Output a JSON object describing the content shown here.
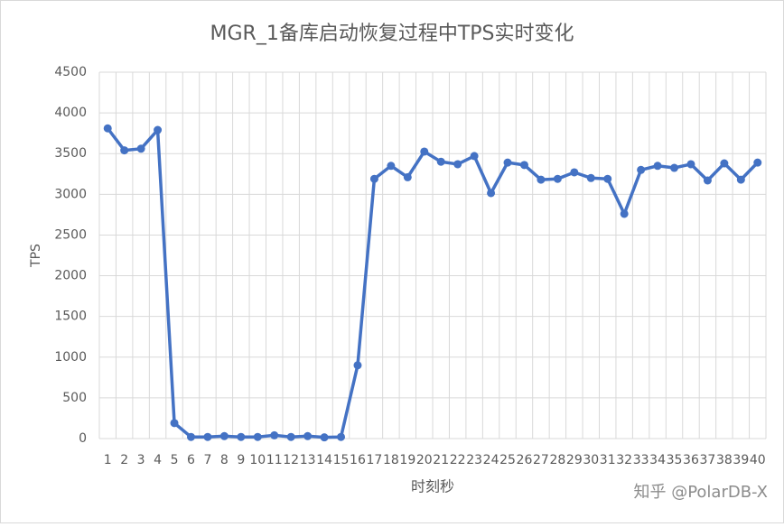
{
  "chart_data": {
    "type": "line",
    "title": "MGR_1备库启动恢复过程中TPS实时变化",
    "x_label": "时刻秒",
    "y_label": "TPS",
    "watermark": "知乎 @PolarDB-X",
    "categories": [
      "1",
      "2",
      "3",
      "4",
      "5",
      "6",
      "7",
      "8",
      "9",
      "10",
      "11",
      "12",
      "13",
      "14",
      "15",
      "16",
      "17",
      "18",
      "19",
      "20",
      "21",
      "22",
      "23",
      "24",
      "25",
      "26",
      "27",
      "28",
      "29",
      "30",
      "31",
      "32",
      "33",
      "34",
      "35",
      "36",
      "37",
      "38",
      "39",
      "40"
    ],
    "series": [
      {
        "name": "TPS",
        "color": "#4472c4",
        "values": [
          3810,
          3540,
          3560,
          3790,
          190,
          20,
          20,
          30,
          20,
          20,
          40,
          20,
          30,
          15,
          20,
          900,
          3190,
          3350,
          3210,
          3525,
          3400,
          3370,
          3470,
          3015,
          3390,
          3360,
          3180,
          3190,
          3270,
          3200,
          3190,
          2760,
          3300,
          3350,
          3325,
          3370,
          3170,
          3380,
          3180,
          3390
        ]
      }
    ],
    "ylim": [
      0,
      4500
    ],
    "yticks": [
      0,
      500,
      1000,
      1500,
      2000,
      2500,
      3000,
      3500,
      4000,
      4500
    ],
    "grid": true
  }
}
